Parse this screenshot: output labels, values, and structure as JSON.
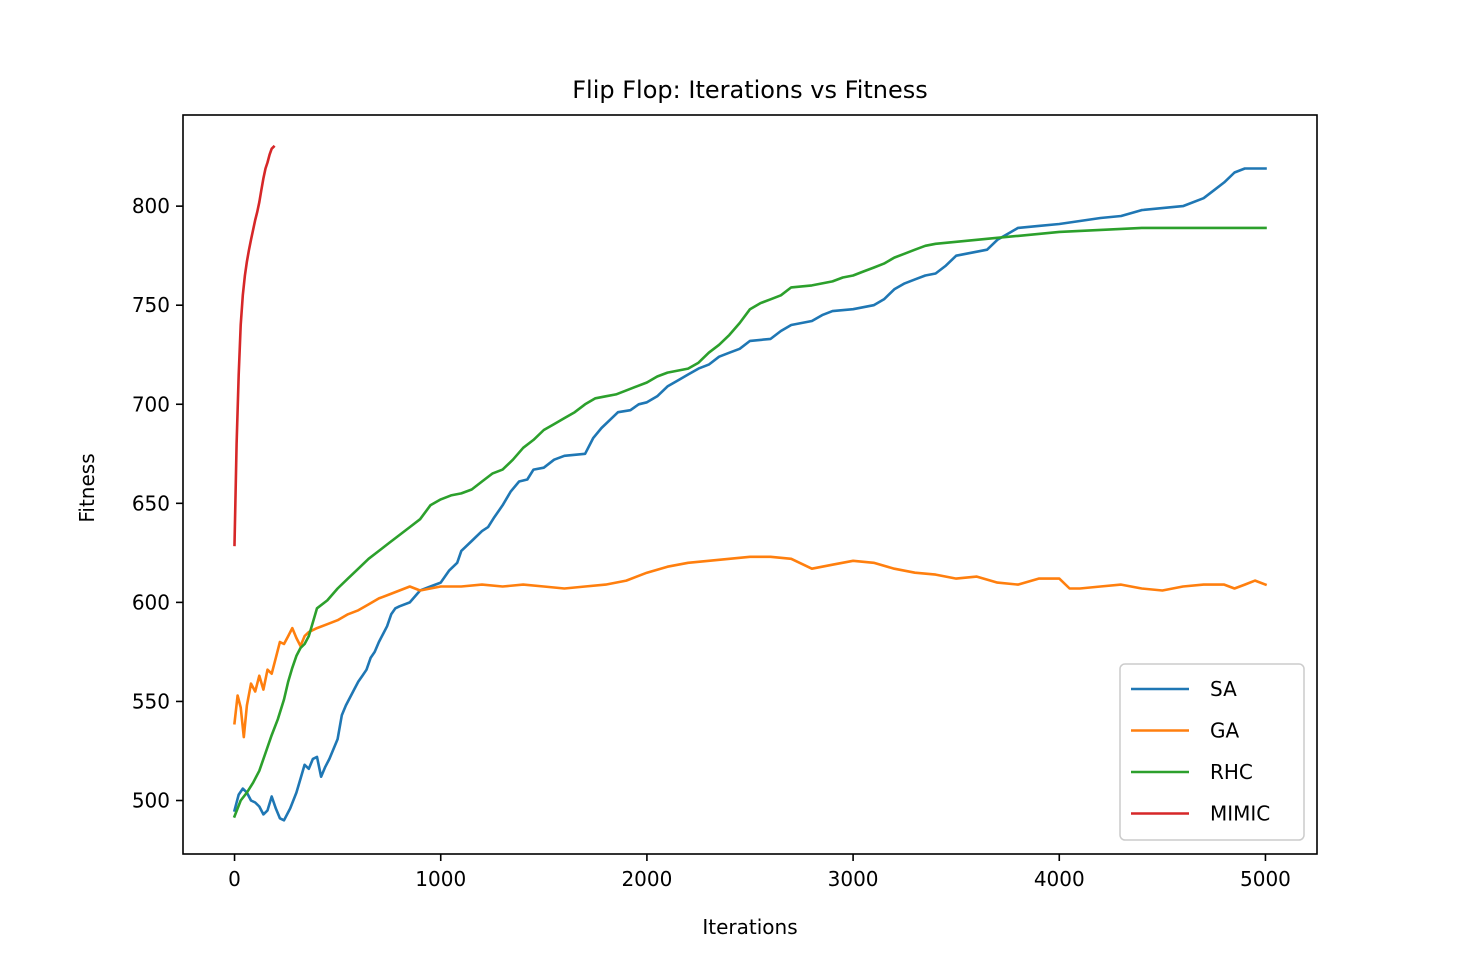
{
  "chart_data": {
    "type": "line",
    "title": "Flip Flop: Iterations vs Fitness",
    "xlabel": "Iterations",
    "ylabel": "Fitness",
    "xlim": [
      -250,
      5250
    ],
    "ylim": [
      473,
      846
    ],
    "xticks": [
      0,
      1000,
      2000,
      3000,
      4000,
      5000
    ],
    "yticks": [
      500,
      550,
      600,
      650,
      700,
      750,
      800
    ],
    "grid": false,
    "legend_position": "lower-right",
    "series": [
      {
        "name": "SA",
        "color": "#1f77b4",
        "points": [
          [
            0,
            495
          ],
          [
            20,
            503
          ],
          [
            40,
            506
          ],
          [
            60,
            504
          ],
          [
            80,
            500
          ],
          [
            100,
            499
          ],
          [
            120,
            497
          ],
          [
            140,
            493
          ],
          [
            160,
            495
          ],
          [
            180,
            502
          ],
          [
            200,
            496
          ],
          [
            220,
            491
          ],
          [
            240,
            490
          ],
          [
            270,
            496
          ],
          [
            300,
            504
          ],
          [
            320,
            511
          ],
          [
            340,
            518
          ],
          [
            360,
            516
          ],
          [
            380,
            521
          ],
          [
            400,
            522
          ],
          [
            420,
            512
          ],
          [
            440,
            517
          ],
          [
            460,
            521
          ],
          [
            480,
            526
          ],
          [
            500,
            531
          ],
          [
            520,
            543
          ],
          [
            540,
            548
          ],
          [
            560,
            552
          ],
          [
            580,
            556
          ],
          [
            600,
            560
          ],
          [
            620,
            563
          ],
          [
            640,
            566
          ],
          [
            660,
            572
          ],
          [
            680,
            575
          ],
          [
            700,
            580
          ],
          [
            720,
            584
          ],
          [
            740,
            588
          ],
          [
            760,
            594
          ],
          [
            780,
            597
          ],
          [
            800,
            598
          ],
          [
            850,
            600
          ],
          [
            900,
            606
          ],
          [
            950,
            608
          ],
          [
            1000,
            610
          ],
          [
            1040,
            616
          ],
          [
            1080,
            620
          ],
          [
            1100,
            626
          ],
          [
            1150,
            631
          ],
          [
            1200,
            636
          ],
          [
            1230,
            638
          ],
          [
            1260,
            643
          ],
          [
            1300,
            649
          ],
          [
            1340,
            656
          ],
          [
            1380,
            661
          ],
          [
            1420,
            662
          ],
          [
            1450,
            667
          ],
          [
            1500,
            668
          ],
          [
            1550,
            672
          ],
          [
            1600,
            674
          ],
          [
            1700,
            675
          ],
          [
            1740,
            683
          ],
          [
            1780,
            688
          ],
          [
            1820,
            692
          ],
          [
            1860,
            696
          ],
          [
            1920,
            697
          ],
          [
            1960,
            700
          ],
          [
            2000,
            701
          ],
          [
            2050,
            704
          ],
          [
            2100,
            709
          ],
          [
            2150,
            712
          ],
          [
            2200,
            715
          ],
          [
            2250,
            718
          ],
          [
            2300,
            720
          ],
          [
            2350,
            724
          ],
          [
            2400,
            726
          ],
          [
            2450,
            728
          ],
          [
            2500,
            732
          ],
          [
            2600,
            733
          ],
          [
            2650,
            737
          ],
          [
            2700,
            740
          ],
          [
            2800,
            742
          ],
          [
            2850,
            745
          ],
          [
            2900,
            747
          ],
          [
            3000,
            748
          ],
          [
            3100,
            750
          ],
          [
            3150,
            753
          ],
          [
            3200,
            758
          ],
          [
            3250,
            761
          ],
          [
            3300,
            763
          ],
          [
            3350,
            765
          ],
          [
            3400,
            766
          ],
          [
            3450,
            770
          ],
          [
            3500,
            775
          ],
          [
            3550,
            776
          ],
          [
            3650,
            778
          ],
          [
            3700,
            783
          ],
          [
            3750,
            786
          ],
          [
            3800,
            789
          ],
          [
            3900,
            790
          ],
          [
            4000,
            791
          ],
          [
            4200,
            794
          ],
          [
            4300,
            795
          ],
          [
            4400,
            798
          ],
          [
            4600,
            800
          ],
          [
            4700,
            804
          ],
          [
            4750,
            808
          ],
          [
            4800,
            812
          ],
          [
            4850,
            817
          ],
          [
            4900,
            819
          ],
          [
            5000,
            819
          ]
        ]
      },
      {
        "name": "GA",
        "color": "#ff7f0e",
        "points": [
          [
            0,
            539
          ],
          [
            15,
            553
          ],
          [
            30,
            547
          ],
          [
            45,
            532
          ],
          [
            60,
            548
          ],
          [
            80,
            559
          ],
          [
            100,
            555
          ],
          [
            120,
            563
          ],
          [
            140,
            556
          ],
          [
            160,
            566
          ],
          [
            180,
            564
          ],
          [
            200,
            572
          ],
          [
            220,
            580
          ],
          [
            240,
            579
          ],
          [
            260,
            583
          ],
          [
            280,
            587
          ],
          [
            300,
            582
          ],
          [
            320,
            578
          ],
          [
            340,
            583
          ],
          [
            360,
            585
          ],
          [
            380,
            586
          ],
          [
            400,
            587
          ],
          [
            450,
            589
          ],
          [
            500,
            591
          ],
          [
            550,
            594
          ],
          [
            600,
            596
          ],
          [
            650,
            599
          ],
          [
            700,
            602
          ],
          [
            750,
            604
          ],
          [
            800,
            606
          ],
          [
            850,
            608
          ],
          [
            900,
            606
          ],
          [
            950,
            607
          ],
          [
            1000,
            608
          ],
          [
            1100,
            608
          ],
          [
            1200,
            609
          ],
          [
            1300,
            608
          ],
          [
            1400,
            609
          ],
          [
            1500,
            608
          ],
          [
            1600,
            607
          ],
          [
            1700,
            608
          ],
          [
            1800,
            609
          ],
          [
            1900,
            611
          ],
          [
            2000,
            615
          ],
          [
            2100,
            618
          ],
          [
            2200,
            620
          ],
          [
            2300,
            621
          ],
          [
            2400,
            622
          ],
          [
            2500,
            623
          ],
          [
            2600,
            623
          ],
          [
            2700,
            622
          ],
          [
            2800,
            617
          ],
          [
            2900,
            619
          ],
          [
            3000,
            621
          ],
          [
            3100,
            620
          ],
          [
            3200,
            617
          ],
          [
            3300,
            615
          ],
          [
            3400,
            614
          ],
          [
            3500,
            612
          ],
          [
            3600,
            613
          ],
          [
            3700,
            610
          ],
          [
            3800,
            609
          ],
          [
            3900,
            612
          ],
          [
            4000,
            612
          ],
          [
            4050,
            607
          ],
          [
            4100,
            607
          ],
          [
            4200,
            608
          ],
          [
            4300,
            609
          ],
          [
            4400,
            607
          ],
          [
            4500,
            606
          ],
          [
            4600,
            608
          ],
          [
            4700,
            609
          ],
          [
            4800,
            609
          ],
          [
            4850,
            607
          ],
          [
            4900,
            609
          ],
          [
            4950,
            611
          ],
          [
            5000,
            609
          ]
        ]
      },
      {
        "name": "RHC",
        "color": "#2ca02c",
        "points": [
          [
            0,
            492
          ],
          [
            30,
            500
          ],
          [
            60,
            504
          ],
          [
            90,
            509
          ],
          [
            120,
            515
          ],
          [
            150,
            524
          ],
          [
            180,
            533
          ],
          [
            210,
            541
          ],
          [
            240,
            551
          ],
          [
            260,
            560
          ],
          [
            280,
            567
          ],
          [
            300,
            573
          ],
          [
            320,
            577
          ],
          [
            340,
            579
          ],
          [
            360,
            583
          ],
          [
            380,
            590
          ],
          [
            400,
            597
          ],
          [
            450,
            601
          ],
          [
            500,
            607
          ],
          [
            550,
            612
          ],
          [
            600,
            617
          ],
          [
            650,
            622
          ],
          [
            700,
            626
          ],
          [
            750,
            630
          ],
          [
            800,
            634
          ],
          [
            850,
            638
          ],
          [
            900,
            642
          ],
          [
            950,
            649
          ],
          [
            1000,
            652
          ],
          [
            1050,
            654
          ],
          [
            1100,
            655
          ],
          [
            1150,
            657
          ],
          [
            1200,
            661
          ],
          [
            1250,
            665
          ],
          [
            1300,
            667
          ],
          [
            1350,
            672
          ],
          [
            1400,
            678
          ],
          [
            1450,
            682
          ],
          [
            1500,
            687
          ],
          [
            1550,
            690
          ],
          [
            1600,
            693
          ],
          [
            1650,
            696
          ],
          [
            1700,
            700
          ],
          [
            1750,
            703
          ],
          [
            1800,
            704
          ],
          [
            1850,
            705
          ],
          [
            1900,
            707
          ],
          [
            1950,
            709
          ],
          [
            2000,
            711
          ],
          [
            2050,
            714
          ],
          [
            2100,
            716
          ],
          [
            2200,
            718
          ],
          [
            2250,
            721
          ],
          [
            2300,
            726
          ],
          [
            2350,
            730
          ],
          [
            2400,
            735
          ],
          [
            2450,
            741
          ],
          [
            2500,
            748
          ],
          [
            2550,
            751
          ],
          [
            2600,
            753
          ],
          [
            2650,
            755
          ],
          [
            2700,
            759
          ],
          [
            2800,
            760
          ],
          [
            2900,
            762
          ],
          [
            2950,
            764
          ],
          [
            3000,
            765
          ],
          [
            3050,
            767
          ],
          [
            3100,
            769
          ],
          [
            3150,
            771
          ],
          [
            3200,
            774
          ],
          [
            3250,
            776
          ],
          [
            3300,
            778
          ],
          [
            3350,
            780
          ],
          [
            3400,
            781
          ],
          [
            3500,
            782
          ],
          [
            3600,
            783
          ],
          [
            3700,
            784
          ],
          [
            3800,
            785
          ],
          [
            3900,
            786
          ],
          [
            4000,
            787
          ],
          [
            4200,
            788
          ],
          [
            4400,
            789
          ],
          [
            5000,
            789
          ]
        ]
      },
      {
        "name": "MIMIC",
        "color": "#d62728",
        "points": [
          [
            0,
            629
          ],
          [
            10,
            680
          ],
          [
            20,
            715
          ],
          [
            30,
            740
          ],
          [
            40,
            755
          ],
          [
            50,
            765
          ],
          [
            60,
            772
          ],
          [
            70,
            778
          ],
          [
            80,
            783
          ],
          [
            90,
            788
          ],
          [
            100,
            793
          ],
          [
            110,
            797
          ],
          [
            120,
            802
          ],
          [
            130,
            808
          ],
          [
            140,
            814
          ],
          [
            150,
            819
          ],
          [
            160,
            822
          ],
          [
            170,
            826
          ],
          [
            180,
            829
          ],
          [
            190,
            830
          ]
        ]
      }
    ]
  }
}
